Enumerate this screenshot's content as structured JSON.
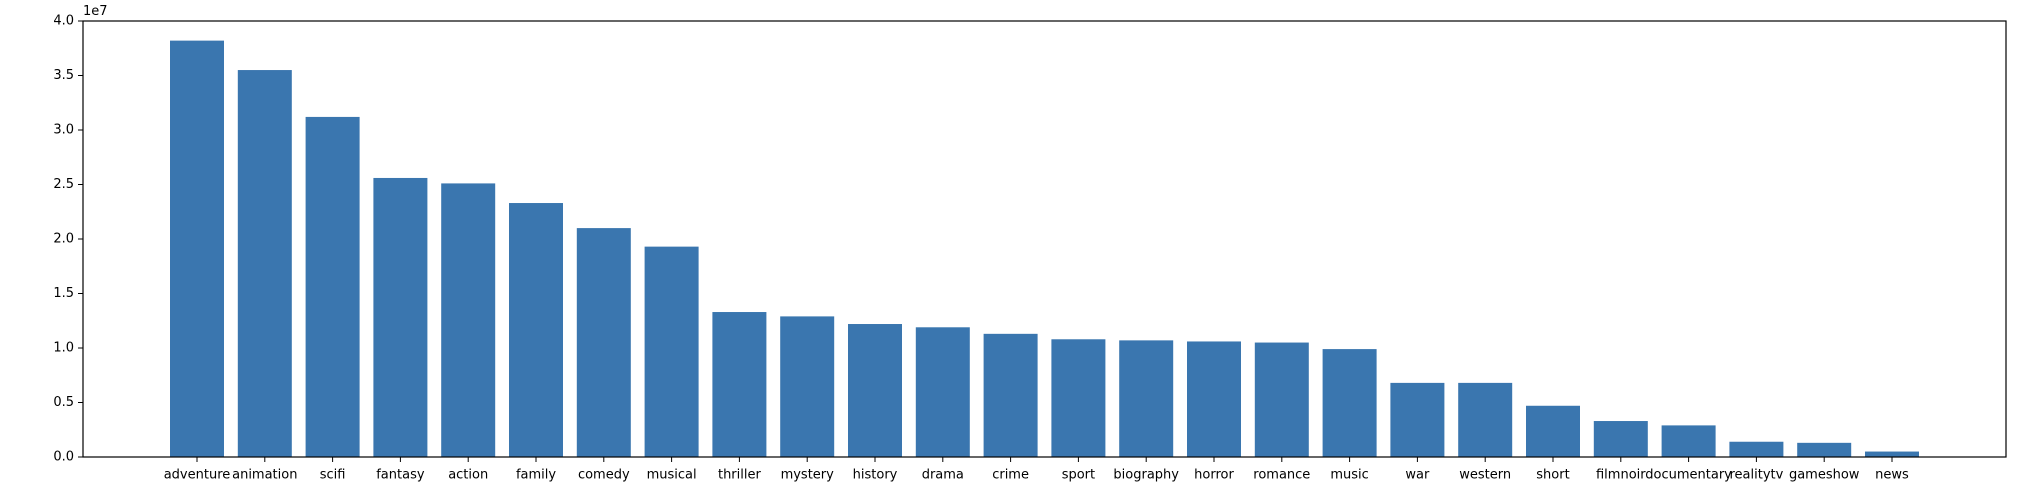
{
  "chart_data": {
    "type": "bar",
    "title": "",
    "xlabel": "",
    "ylabel": "",
    "y_scale_label": "1e7",
    "ylim": [
      0,
      4.0
    ],
    "yticks": [
      "0.0",
      "0.5",
      "1.0",
      "1.5",
      "2.0",
      "2.5",
      "3.0",
      "3.5",
      "4.0"
    ],
    "grid": false,
    "bar_color": "#3a76af",
    "categories": [
      "adventure",
      "animation",
      "scifi",
      "fantasy",
      "action",
      "family",
      "comedy",
      "musical",
      "thriller",
      "mystery",
      "history",
      "drama",
      "crime",
      "sport",
      "biography",
      "horror",
      "romance",
      "music",
      "war",
      "western",
      "short",
      "filmnoir",
      "documentary",
      "realitytv",
      "gameshow",
      "news"
    ],
    "values": [
      3.82,
      3.55,
      3.12,
      2.56,
      2.51,
      2.33,
      2.1,
      1.93,
      1.33,
      1.29,
      1.22,
      1.19,
      1.13,
      1.08,
      1.07,
      1.06,
      1.05,
      0.99,
      0.68,
      0.68,
      0.47,
      0.33,
      0.29,
      0.14,
      0.13,
      0.05
    ]
  }
}
